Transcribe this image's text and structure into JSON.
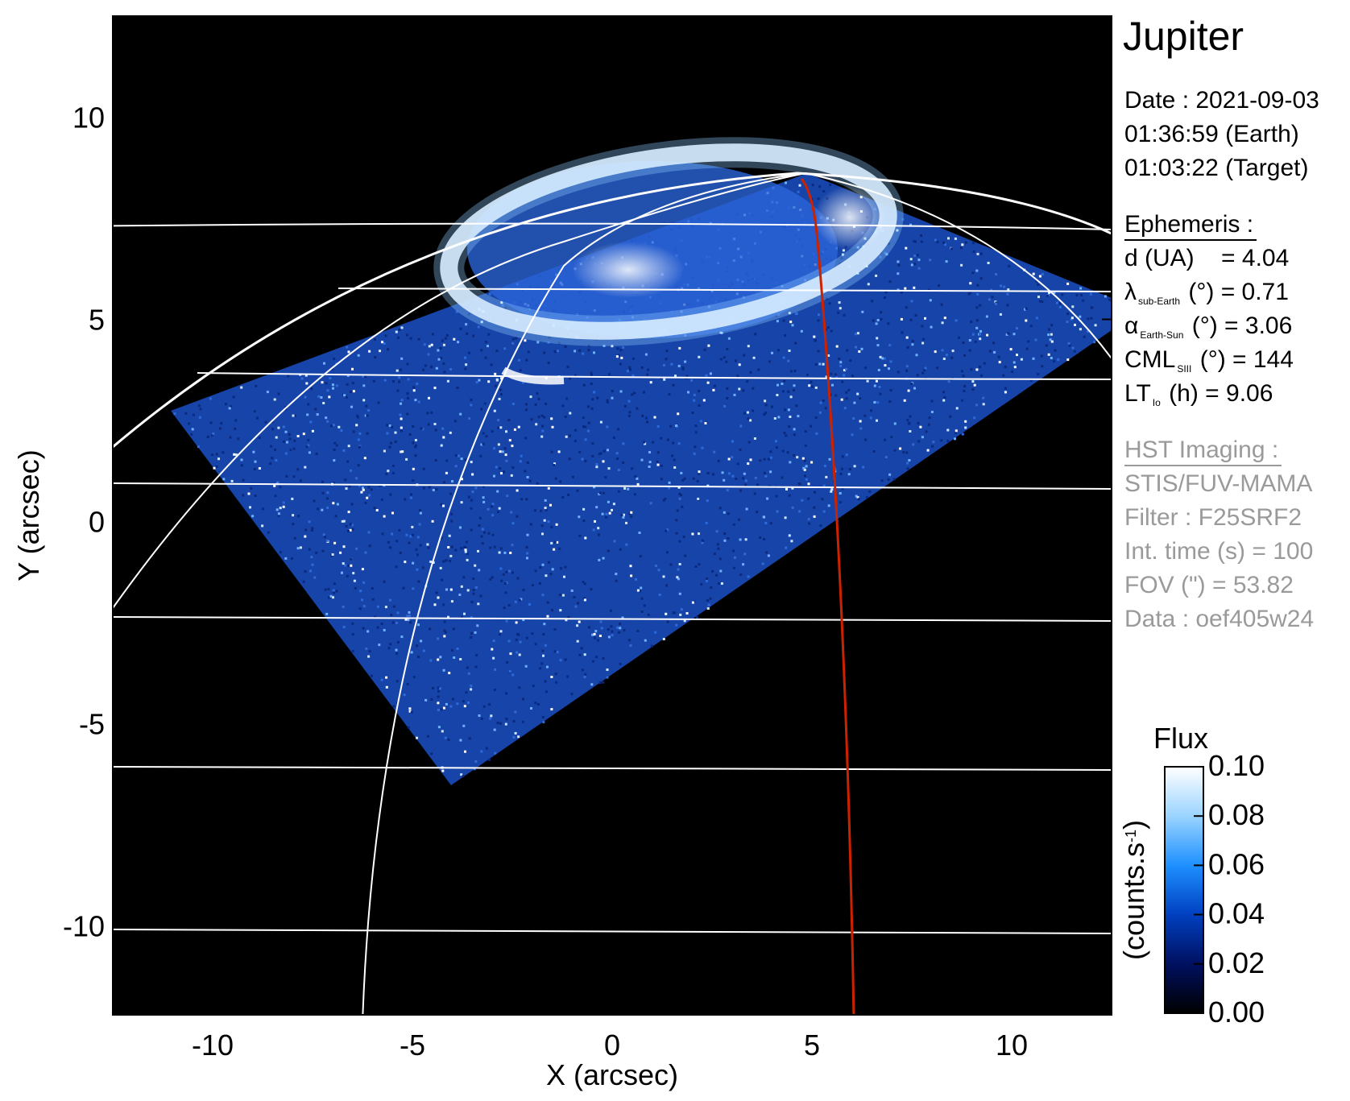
{
  "chart_data": {
    "type": "heatmap",
    "title": "Jupiter",
    "xlabel": "X (arcsec)",
    "ylabel": "Y (arcsec)",
    "xlim": [
      -12.5,
      12.5
    ],
    "ylim": [
      -12.2,
      12.5
    ],
    "xticks": [
      -10,
      -5,
      0,
      5,
      10
    ],
    "yticks": [
      -10,
      -5,
      0,
      5,
      10
    ],
    "grid": "latitude/longitude overlay on planet disk",
    "footprint_line_color": "#cc2200",
    "colorbar": {
      "title": "Flux",
      "label": "(counts.s",
      "label_sup": "-1",
      "label_close": ")",
      "ticks": [
        "0.10",
        "0.08",
        "0.06",
        "0.04",
        "0.02",
        "0.00"
      ],
      "range": [
        0.0,
        0.1
      ],
      "colors": [
        "#000000",
        "#001060",
        "#0040c0",
        "#1e90ff",
        "#9ad4ff",
        "#ffffff"
      ]
    }
  },
  "info": {
    "date_line": "Date : 2021-09-03",
    "earth_time": "01:36:59 (Earth)",
    "target_time": "01:03:22 (Target)",
    "ephemeris_header": "Ephemeris :",
    "d": {
      "label": "d (UA)",
      "value": "= 4.04"
    },
    "lat": {
      "symbol": "λ",
      "sub": "sub-Earth",
      "unit": "(°) = 0.71"
    },
    "alpha": {
      "symbol": "α",
      "sub": "Earth-Sun",
      "unit": "(°) = 3.06"
    },
    "cml": {
      "symbol": "CML",
      "sub": "SIII",
      "unit": "(°) = 144"
    },
    "lt": {
      "symbol": "LT",
      "sub": "Io",
      "unit": "(h) = 9.06"
    },
    "hst_header": "HST Imaging :",
    "instrument": "STIS/FUV-MAMA",
    "filter": "Filter : F25SRF2",
    "int_time": "Int. time (s) = 100",
    "fov": "FOV (\") = 53.82",
    "data_id": "Data : oef405w24"
  }
}
